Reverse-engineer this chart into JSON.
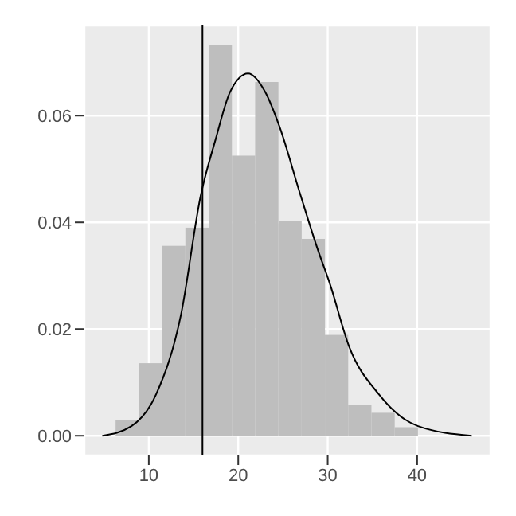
{
  "chart_data": {
    "type": "histogram",
    "bins": [
      6.3,
      8.9,
      11.5,
      14.1,
      16.7,
      19.3,
      21.9,
      24.5,
      27.1,
      29.7,
      32.3,
      34.9,
      37.5,
      40.1
    ],
    "values": [
      0.003,
      0.0136,
      0.0356,
      0.039,
      0.0732,
      0.0525,
      0.0663,
      0.0403,
      0.0369,
      0.0189,
      0.0058,
      0.0043,
      0.0016
    ],
    "color": "#bebebe",
    "series": [
      {
        "type": "line",
        "color": "#000000",
        "x": [
          4.8,
          8.06,
          10.83,
          13.6,
          15.8,
          17.46,
          19.1,
          21.1,
          22.99,
          24.6,
          26.87,
          28.95,
          30.2,
          32.4,
          35.7,
          40.1,
          46.1
        ],
        "values": [
          0,
          0.0018,
          0.0078,
          0.0227,
          0.045,
          0.0555,
          0.0645,
          0.0679,
          0.0645,
          0.058,
          0.0456,
          0.0346,
          0.0287,
          0.0167,
          0.0078,
          0.0018,
          0
        ]
      }
    ],
    "ref_lines": [
      {
        "axis": "x",
        "value": 16,
        "color": "#000000"
      }
    ],
    "xlim": [
      2.8,
      48.2
    ],
    "xticks": [
      10,
      20,
      30,
      40
    ],
    "ylim": [
      -0.0037,
      0.0769
    ],
    "yticks": [
      {
        "value": 0,
        "label": "0.00"
      },
      {
        "value": 0.02,
        "label": "0.02"
      },
      {
        "value": 0.04,
        "label": "0.04"
      },
      {
        "value": 0.06,
        "label": "0.06"
      }
    ],
    "grid": true,
    "marker": "none",
    "line_style": "solid"
  }
}
